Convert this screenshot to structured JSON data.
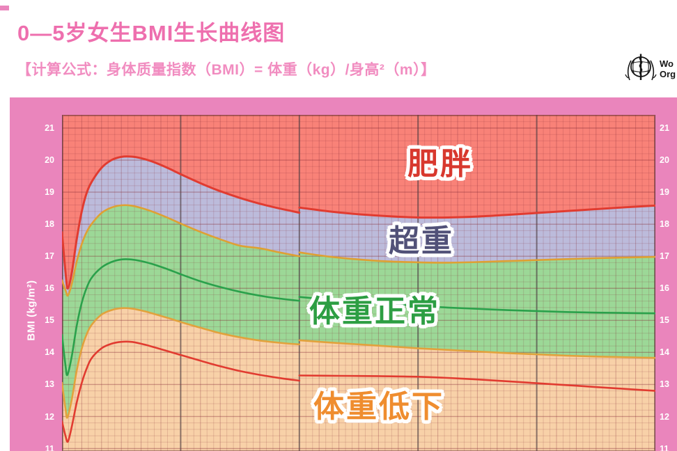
{
  "header": {
    "title": "0—5岁女生BMI生长曲线图",
    "subtitle": "【计算公式：身体质量指数（BMI）= 体重（kg）/身高²（m）】"
  },
  "who_logo": {
    "line1": "Wo",
    "line2": "Org"
  },
  "axis": {
    "y_label": "BMI (kg/m²)",
    "yticks": [
      21,
      20,
      19,
      18,
      17,
      16,
      15,
      14,
      13,
      12,
      11
    ]
  },
  "colors": {
    "panel_pink": "#ea85bc",
    "title_pink": "#ee6fae",
    "subtitle_pink": "#f18cc0",
    "tick_text": "#ffffff",
    "grid_minor": "rgba(135,45,55,0.18)",
    "grid_medium": "rgba(135,45,55,0.32)",
    "grid_major_h": "rgba(135,45,55,0.38)",
    "grid_year": "rgba(75,60,65,0.65)",
    "plot_border": "rgba(110,55,60,0.55)"
  },
  "chart_data": {
    "type": "area",
    "title": "0—5岁女生BMI生长曲线图",
    "ylabel": "BMI (kg/m²)",
    "x_range_months": [
      0,
      60
    ],
    "x_year_gridlines": [
      0,
      1,
      2,
      3,
      4,
      5
    ],
    "ylim_visible": [
      10.9,
      21.4
    ],
    "yticks": [
      21,
      20,
      19,
      18,
      17,
      16,
      15,
      14,
      13,
      12,
      11
    ],
    "bands": [
      {
        "label": "肥胖",
        "fill": "#f98278",
        "label_color": "#d8382e"
      },
      {
        "label": "超重",
        "fill": "#bcbbdb",
        "label_color": "#515178"
      },
      {
        "label": "体重正常",
        "fill": "#9cd897",
        "label_color": "#2d9e43"
      },
      {
        "label": "体重低下",
        "fill": "#f8d1a8",
        "label_color": "#ef8d2f"
      }
    ],
    "series": [
      {
        "name": "upper_red_curve",
        "color": "#e13b30",
        "width": 3,
        "points_0_24m": [
          [
            0,
            17.75
          ],
          [
            0.4,
            16.35
          ],
          [
            0.6,
            16.0
          ],
          [
            1,
            16.5
          ],
          [
            1.5,
            17.55
          ],
          [
            2,
            18.4
          ],
          [
            2.5,
            18.98
          ],
          [
            3,
            19.32
          ],
          [
            4,
            19.76
          ],
          [
            5,
            20.0
          ],
          [
            6,
            20.1
          ],
          [
            7,
            20.11
          ],
          [
            8,
            20.06
          ],
          [
            9,
            19.97
          ],
          [
            10,
            19.85
          ],
          [
            11,
            19.71
          ],
          [
            12,
            19.56
          ],
          [
            14,
            19.28
          ],
          [
            16,
            19.03
          ],
          [
            18,
            18.82
          ],
          [
            20,
            18.64
          ],
          [
            22,
            18.49
          ],
          [
            24,
            18.36
          ]
        ],
        "points_24_60m": [
          [
            24,
            18.52
          ],
          [
            27,
            18.4
          ],
          [
            30,
            18.31
          ],
          [
            33,
            18.25
          ],
          [
            36,
            18.21
          ],
          [
            39,
            18.21
          ],
          [
            42,
            18.24
          ],
          [
            45,
            18.29
          ],
          [
            48,
            18.35
          ],
          [
            51,
            18.41
          ],
          [
            54,
            18.47
          ],
          [
            57,
            18.53
          ],
          [
            60,
            18.58
          ]
        ]
      },
      {
        "name": "upper_orange_curve",
        "color": "#dfa033",
        "width": 2.6,
        "points_0_24m": [
          [
            0,
            16.25
          ],
          [
            0.4,
            15.9
          ],
          [
            0.6,
            15.78
          ],
          [
            1,
            16.15
          ],
          [
            1.5,
            16.85
          ],
          [
            2,
            17.38
          ],
          [
            2.5,
            17.76
          ],
          [
            3,
            18.01
          ],
          [
            4,
            18.35
          ],
          [
            5,
            18.52
          ],
          [
            6,
            18.59
          ],
          [
            7,
            18.58
          ],
          [
            8,
            18.51
          ],
          [
            9,
            18.41
          ],
          [
            10,
            18.29
          ],
          [
            11,
            18.16
          ],
          [
            12,
            18.02
          ],
          [
            14,
            17.76
          ],
          [
            16,
            17.53
          ],
          [
            18,
            17.33
          ],
          [
            20,
            17.25
          ],
          [
            22,
            17.12
          ],
          [
            24,
            17.0
          ]
        ],
        "points_24_60m": [
          [
            24,
            17.12
          ],
          [
            27,
            16.99
          ],
          [
            30,
            16.9
          ],
          [
            33,
            16.84
          ],
          [
            36,
            16.81
          ],
          [
            39,
            16.8
          ],
          [
            42,
            16.82
          ],
          [
            45,
            16.85
          ],
          [
            48,
            16.88
          ],
          [
            51,
            16.91
          ],
          [
            54,
            16.94
          ],
          [
            57,
            16.96
          ],
          [
            60,
            16.98
          ]
        ]
      },
      {
        "name": "median_green_curve",
        "color": "#2aa14b",
        "width": 2.6,
        "points_0_24m": [
          [
            0,
            14.55
          ],
          [
            0.35,
            13.6
          ],
          [
            0.55,
            13.3
          ],
          [
            1,
            13.9
          ],
          [
            1.5,
            14.85
          ],
          [
            2,
            15.55
          ],
          [
            2.5,
            16.02
          ],
          [
            3,
            16.33
          ],
          [
            4,
            16.65
          ],
          [
            5,
            16.82
          ],
          [
            6,
            16.9
          ],
          [
            7,
            16.9
          ],
          [
            8,
            16.85
          ],
          [
            9,
            16.77
          ],
          [
            10,
            16.67
          ],
          [
            11,
            16.56
          ],
          [
            12,
            16.44
          ],
          [
            14,
            16.22
          ],
          [
            16,
            16.04
          ],
          [
            18,
            15.89
          ],
          [
            20,
            15.77
          ],
          [
            22,
            15.68
          ],
          [
            24,
            15.61
          ]
        ],
        "points_24_60m": [
          [
            24,
            15.73
          ],
          [
            27,
            15.65
          ],
          [
            30,
            15.58
          ],
          [
            33,
            15.51
          ],
          [
            36,
            15.45
          ],
          [
            39,
            15.4
          ],
          [
            42,
            15.36
          ],
          [
            45,
            15.32
          ],
          [
            48,
            15.29
          ],
          [
            51,
            15.26
          ],
          [
            54,
            15.24
          ],
          [
            57,
            15.23
          ],
          [
            60,
            15.22
          ]
        ]
      },
      {
        "name": "lower_orange_curve",
        "color": "#e2a23c",
        "width": 2.6,
        "points_0_24m": [
          [
            0,
            13.05
          ],
          [
            0.35,
            12.25
          ],
          [
            0.55,
            11.97
          ],
          [
            1,
            12.55
          ],
          [
            1.5,
            13.45
          ],
          [
            2,
            14.12
          ],
          [
            2.5,
            14.57
          ],
          [
            3,
            14.86
          ],
          [
            4,
            15.18
          ],
          [
            5,
            15.32
          ],
          [
            6,
            15.38
          ],
          [
            7,
            15.37
          ],
          [
            8,
            15.31
          ],
          [
            9,
            15.23
          ],
          [
            10,
            15.14
          ],
          [
            11,
            15.05
          ],
          [
            12,
            14.95
          ],
          [
            14,
            14.77
          ],
          [
            16,
            14.6
          ],
          [
            18,
            14.47
          ],
          [
            20,
            14.37
          ],
          [
            22,
            14.3
          ],
          [
            24,
            14.25
          ]
        ],
        "points_24_60m": [
          [
            24,
            14.38
          ],
          [
            27,
            14.31
          ],
          [
            30,
            14.25
          ],
          [
            33,
            14.19
          ],
          [
            36,
            14.13
          ],
          [
            39,
            14.08
          ],
          [
            42,
            14.03
          ],
          [
            45,
            13.98
          ],
          [
            48,
            13.94
          ],
          [
            51,
            13.9
          ],
          [
            54,
            13.87
          ],
          [
            57,
            13.85
          ],
          [
            60,
            13.83
          ]
        ]
      },
      {
        "name": "lower_red_curve",
        "color": "#e13b30",
        "width": 2.6,
        "points_0_24m": [
          [
            0,
            11.85
          ],
          [
            0.35,
            11.4
          ],
          [
            0.6,
            11.22
          ],
          [
            1,
            11.7
          ],
          [
            1.5,
            12.45
          ],
          [
            2,
            13.05
          ],
          [
            2.5,
            13.5
          ],
          [
            3,
            13.82
          ],
          [
            4,
            14.13
          ],
          [
            5,
            14.27
          ],
          [
            6,
            14.33
          ],
          [
            7,
            14.33
          ],
          [
            8,
            14.27
          ],
          [
            9,
            14.19
          ],
          [
            10,
            14.1
          ],
          [
            11,
            14.01
          ],
          [
            12,
            13.92
          ],
          [
            14,
            13.74
          ],
          [
            16,
            13.57
          ],
          [
            18,
            13.42
          ],
          [
            20,
            13.3
          ],
          [
            22,
            13.2
          ],
          [
            24,
            13.12
          ]
        ],
        "points_24_60m": [
          [
            24,
            13.28
          ],
          [
            28,
            13.27
          ],
          [
            32,
            13.26
          ],
          [
            36,
            13.24
          ],
          [
            40,
            13.19
          ],
          [
            44,
            13.12
          ],
          [
            48,
            13.04
          ],
          [
            52,
            12.96
          ],
          [
            56,
            12.88
          ],
          [
            60,
            12.8
          ]
        ]
      }
    ]
  }
}
